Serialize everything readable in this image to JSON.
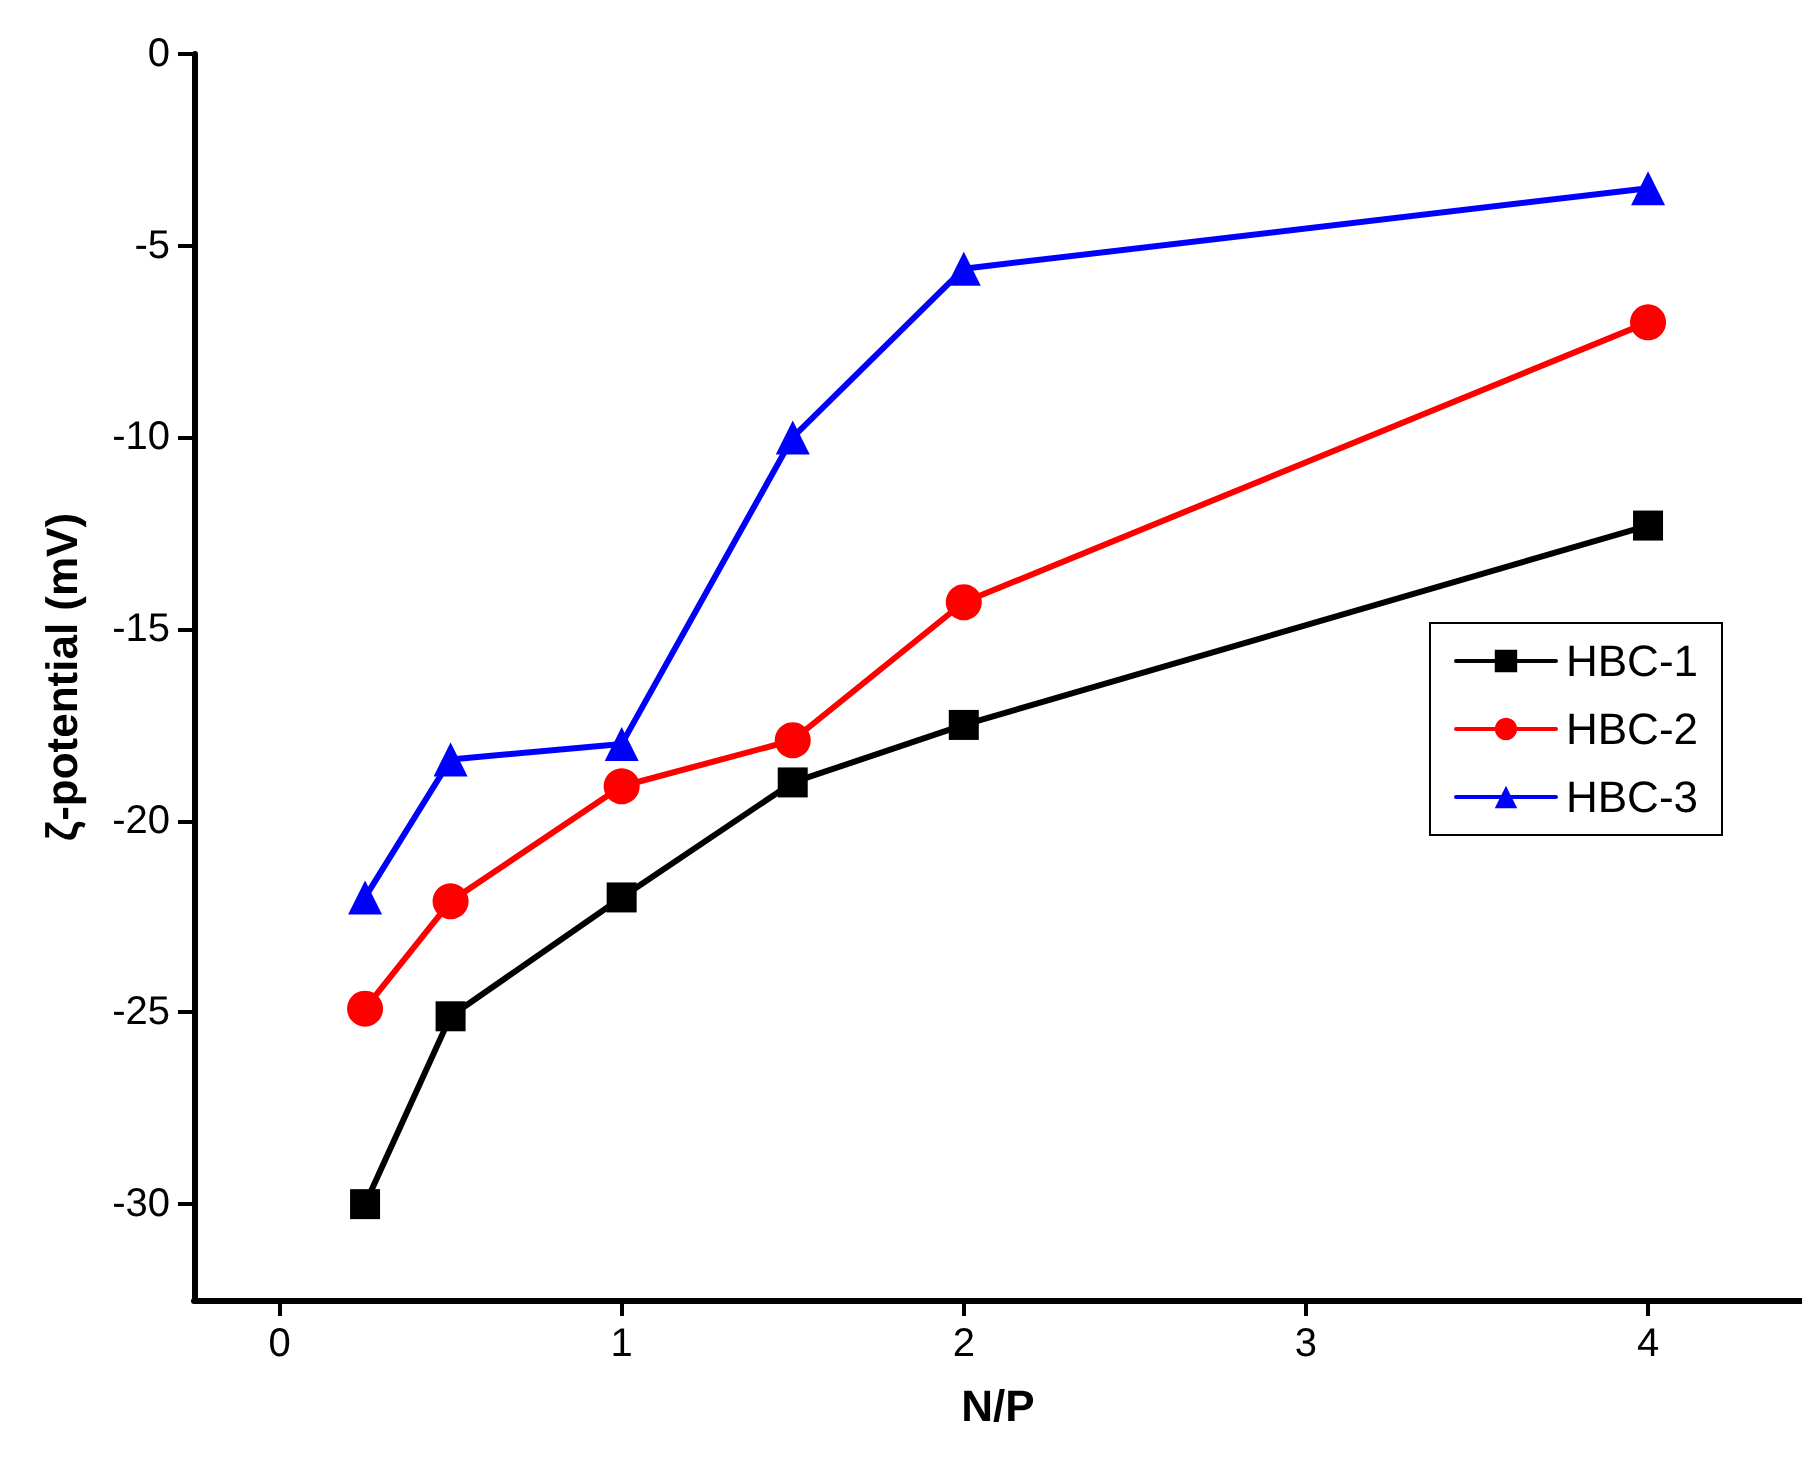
{
  "chart_data": {
    "type": "line",
    "xlabel": "N/P",
    "ylabel": "ζ-potential (mV)",
    "xlim": [
      -0.25,
      4.45
    ],
    "xticks": [
      0,
      1,
      2,
      3,
      4
    ],
    "ylim": [
      -32.5,
      0
    ],
    "yticks": [
      -30,
      -25,
      -20,
      -15,
      -10,
      -5,
      0
    ],
    "x": [
      0.25,
      0.5,
      1,
      1.5,
      2,
      4
    ],
    "series": [
      {
        "name": "HBC-1",
        "color": "#000000",
        "marker": "square",
        "values": [
          -30,
          -25.1,
          -22,
          -19,
          -17.5,
          -12.3
        ]
      },
      {
        "name": "HBC-2",
        "color": "#ff0000",
        "marker": "circle",
        "values": [
          -24.9,
          -22.1,
          -19.1,
          -17.9,
          -14.3,
          -7.0
        ]
      },
      {
        "name": "HBC-3",
        "color": "#0000ff",
        "marker": "triangle",
        "values": [
          -22,
          -18.4,
          -18,
          -10,
          -5.6,
          -3.5
        ]
      }
    ],
    "grid": false,
    "legend": "right",
    "line_style": "solid"
  }
}
